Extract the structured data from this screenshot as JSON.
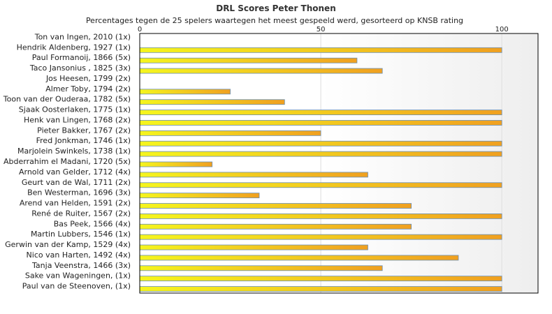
{
  "chart_data": {
    "type": "bar",
    "orientation": "horizontal",
    "title": "DRL Scores Peter Thonen",
    "subtitle": "Percentages tegen de 25 spelers waartegen het meest gespeeld werd, gesorteerd op KNSB rating",
    "xlim": [
      0,
      110
    ],
    "xticks": [
      0,
      50,
      100
    ],
    "xtick_labels": [
      "0",
      "50",
      "100"
    ],
    "grid": true,
    "categories": [
      "Ton van Ingen, 2010 (1x)",
      "Hendrik Aldenberg, 1927 (1x)",
      "Paul Formanoij, 1866 (5x)",
      "Taco Jansonius , 1825 (3x)",
      "Jos Heesen, 1799 (2x)",
      "Almer Toby, 1794 (2x)",
      "Toon van der Ouderaa, 1782 (5x)",
      "Sjaak Oosterlaken, 1775 (1x)",
      "Henk van Lingen, 1768 (2x)",
      "Pieter Bakker, 1767 (2x)",
      "Fred Jonkman, 1746 (1x)",
      "Marjolein Swinkels, 1738 (1x)",
      "Abderrahim el Madani, 1720 (5x)",
      "Arnold van Gelder, 1712 (4x)",
      "Geurt van de Wal, 1711 (2x)",
      "Ben Westerman, 1696 (3x)",
      "Arend van Helden, 1591 (2x)",
      "René de Ruiter, 1567 (2x)",
      "Bas Peek, 1566 (4x)",
      "Martin Lubbers, 1546 (1x)",
      "Gerwin van der Kamp, 1529 (4x)",
      "Nico van Harten, 1492 (4x)",
      "Tanja Veenstra, 1466 (3x)",
      "Sake van Wageningen,  (1x)",
      "Paul van de Steenoven,  (1x)"
    ],
    "values": [
      0,
      100,
      60,
      67,
      0,
      25,
      40,
      100,
      100,
      50,
      100,
      100,
      20,
      63,
      100,
      33,
      75,
      100,
      75,
      100,
      63,
      88,
      67,
      100,
      100
    ],
    "colors": {
      "bar_start": "#f5f51e",
      "bar_end": "#f0a020",
      "bar_stroke": "#6a8fb5",
      "plot_bg": "#f2f2f2",
      "grid": "#dddddd",
      "axis": "#000000"
    }
  }
}
